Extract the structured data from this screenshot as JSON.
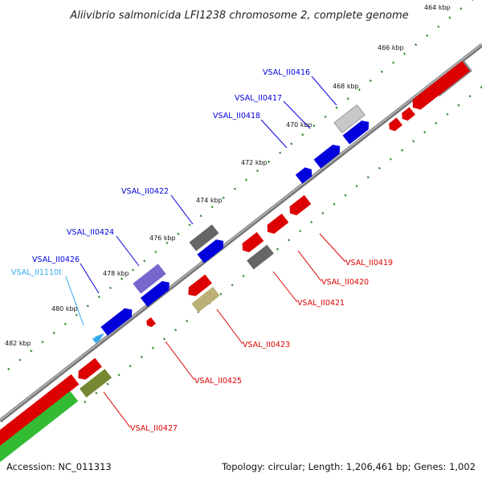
{
  "title": "Aliivibrio salmonicida LFI1238 chromosome 2, complete genome",
  "accession": "Accession: NC_011313",
  "summary": "Topology: circular; Length: 1,206,461 bp; Genes: 1,002",
  "scale_labels": [
    "464 kbp",
    "466 kbp",
    "468 kbp",
    "470 kbp",
    "472 kbp",
    "474 kbp",
    "476 kbp",
    "478 kbp",
    "480 kbp",
    "482 kbp"
  ],
  "gene_labels_forward": [
    "VSAL_II0416",
    "VSAL_II0417",
    "VSAL_II0418",
    "VSAL_II0422",
    "VSAL_II0424",
    "VSAL_II0426",
    "VSAL_II1110t"
  ],
  "gene_labels_reverse": [
    "VSAL_II0419",
    "VSAL_II0420",
    "VSAL_II0421",
    "VSAL_II0423",
    "VSAL_II0425",
    "VSAL_II0427"
  ],
  "colors": {
    "backbone": "#808080",
    "forward_cds": "#0000dd",
    "reverse_cds": "#dd0000",
    "gray_feature": "#666666",
    "purple_feature": "#7766cc",
    "olive_feature": "#bbb077",
    "dark_olive_feature": "#778833",
    "rrna_feature": "#33bb33",
    "trna_feature": "#33aaee",
    "silver_feature": "#c8c8c8",
    "gc_dots": "#338833"
  }
}
